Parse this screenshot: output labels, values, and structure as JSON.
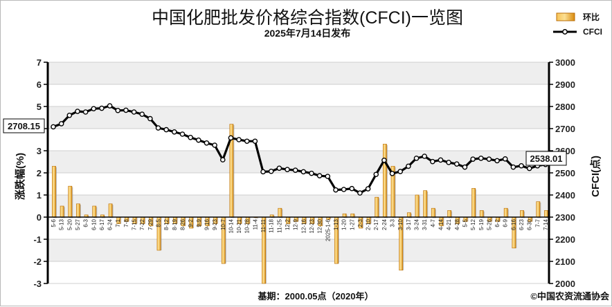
{
  "chart_data": {
    "type": "bar+line",
    "title": "中国化肥批发价格综合指数(CFCI)一览图",
    "subtitle": "2025年7月14日发布",
    "ylabel_left": "涨跌幅(%)",
    "ylabel_right": "CFCI(点)",
    "ylim_left": [
      -3,
      7
    ],
    "ylim_right": [
      2000,
      3000
    ],
    "left_ticks": [
      7,
      6,
      5,
      4,
      3,
      2,
      1,
      0,
      -1,
      -2,
      -3
    ],
    "right_ticks": [
      3000,
      2900,
      2800,
      2700,
      2600,
      2500,
      2400,
      2300,
      2200,
      2100,
      2000
    ],
    "grid": true,
    "legend": {
      "placement": "top-right",
      "entries": [
        {
          "name": "环比",
          "kind": "bar"
        },
        {
          "name": "CFCI",
          "kind": "line"
        }
      ]
    },
    "base_note": "基期：2000.05点（2020年）",
    "copyright": "©中国农资流通协会",
    "callouts": {
      "first": "2708.15",
      "last": "2538.01"
    },
    "date_labels": [
      "5-6",
      "5-13",
      "5-20",
      "5-27",
      "6-3",
      "6-10",
      "6-17",
      "6-24",
      "7-1",
      "7-8",
      "7-15",
      "7-22",
      "7-29",
      "8-5",
      "8-12",
      "8-19",
      "8-26",
      "9-2",
      "9-9",
      "9-16",
      "9-23",
      "10-7",
      "10-14",
      "10-21",
      "10-28",
      "11-4",
      "11-11",
      "11-18",
      "11-25",
      "12-2",
      "12-9",
      "12-16",
      "12-23",
      "12-30",
      "2025-1-6",
      "1-13",
      "1-20",
      "1-27",
      "2-3",
      "2-10",
      "2-17",
      "2-24",
      "3-3",
      "3-10",
      "3-17",
      "3-24",
      "3-31",
      "4-7",
      "4-14",
      "4-21",
      "4-28",
      "5-5",
      "5-12",
      "5-19",
      "5-26",
      "6-2",
      "6-9",
      "6-16",
      "6-23",
      "6-30",
      "7-7",
      "7-14"
    ],
    "series": [
      {
        "name": "环比",
        "type": "bar",
        "values": [
          2.3,
          0.5,
          1.4,
          0.6,
          0.1,
          0.5,
          0.1,
          0.6,
          -0.3,
          -0.2,
          -0.3,
          -0.3,
          -0.4,
          -1.5,
          -0.3,
          -0.3,
          -0.4,
          -0.5,
          -0.4,
          -0.4,
          -0.3,
          -2.1,
          4.2,
          -0.3,
          -0.3,
          0.0,
          -3.0,
          0.1,
          0.4,
          -0.3,
          -0.2,
          -0.3,
          -0.3,
          -0.4,
          -0.1,
          -2.1,
          0.15,
          0.15,
          -0.5,
          -0.3,
          0.9,
          3.3,
          2.3,
          -2.4,
          0.2,
          1.0,
          1.2,
          0.4,
          -0.4,
          0.3,
          -0.3,
          -0.2,
          1.3,
          0.3,
          -0.2,
          -0.2,
          0.4,
          -1.4,
          0.3,
          -0.2,
          0.7,
          0.3
        ]
      },
      {
        "name": "CFCI",
        "type": "line",
        "values": [
          2708.15,
          2722,
          2760,
          2778,
          2775,
          2790,
          2792,
          2803,
          2782,
          2783,
          2775,
          2765,
          2745,
          2703,
          2695,
          2685,
          2675,
          2660,
          2648,
          2635,
          2625,
          2559,
          2658,
          2650,
          2643,
          2643,
          2505,
          2507,
          2521,
          2515,
          2512,
          2505,
          2498,
          2487,
          2484,
          2423,
          2425,
          2429,
          2409,
          2428,
          2493,
          2557,
          2497,
          2506,
          2530,
          2566,
          2575,
          2551,
          2558,
          2547,
          2540,
          2526,
          2562,
          2566,
          2562,
          2555,
          2563,
          2526,
          2532,
          2520,
          2532,
          2538.01
        ]
      }
    ]
  },
  "colors": {
    "bar_main": "#f0a218",
    "bar_light": "#fbd98c",
    "bar_dark": "#b86e08",
    "line": "#000000",
    "marker": "#ffffff",
    "grid_band": "#eeeeee",
    "grid_line": "#cfcfcf"
  }
}
